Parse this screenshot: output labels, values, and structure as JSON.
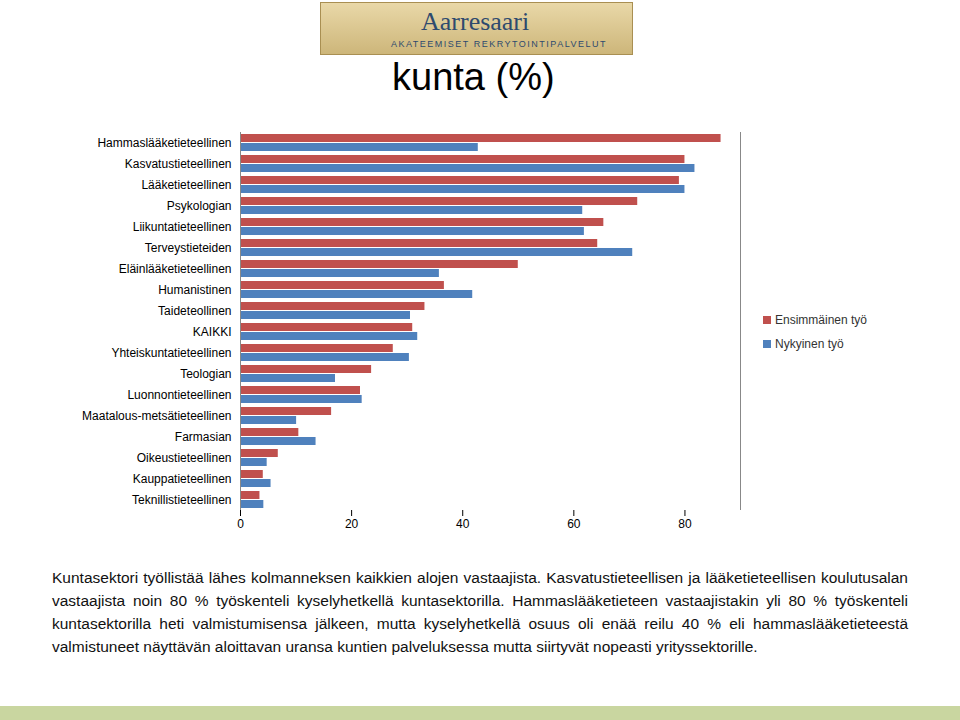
{
  "header": {
    "logo_title": "Aarresaari",
    "logo_subtitle": "AKATEEMISET REKRYTOINTIPALVELUT"
  },
  "chart_data": {
    "type": "bar",
    "orientation": "horizontal",
    "title": "kunta (%)",
    "categories": [
      "Hammaslääketieteellinen",
      "Kasvatustieteellinen",
      "Lääketieteellinen",
      "Psykologian",
      "Liikuntatieteellinen",
      "Terveystieteiden",
      "Eläinlääketieteellinen",
      "Humanistinen",
      "Taideteollinen",
      "KAIKKI",
      "Yhteiskuntatieteellinen",
      "Teologian",
      "Luonnontieteellinen",
      "Maatalous-metsätieteellinen",
      "Farmasian",
      "Oikeustieteellinen",
      "Kauppatieteellinen",
      "Teknillistieteellinen"
    ],
    "series": [
      {
        "name": "Ensimmäinen työ",
        "color": "#c0504d",
        "values": [
          86.5,
          80,
          79,
          71.5,
          65.4,
          64.3,
          50,
          36.7,
          33.2,
          31,
          27.5,
          23.6,
          21.6,
          16.4,
          10.5,
          6.8,
          4.1,
          3.5
        ]
      },
      {
        "name": "Nykyinen työ",
        "color": "#4f81bd",
        "values": [
          42.8,
          81.8,
          80,
          61.6,
          61.9,
          70.6,
          35.8,
          41.8,
          30.6,
          31.9,
          30.4,
          17.1,
          21.9,
          10.1,
          13.6,
          4.8,
          5.5,
          4.2
        ]
      }
    ],
    "xlim": [
      0,
      90
    ],
    "xticks": [
      0,
      20,
      40,
      60,
      80
    ],
    "grid": false,
    "legend": "right"
  },
  "caption": "Kuntasektori työllistää lähes kolmanneksen kaikkien alojen vastaajista. Kasvatustieteellisen ja lääketieteellisen koulutusalan vastaajista noin 80 % työskenteli kyselyhetkellä kuntasektorilla. Hammaslääketieteen vastaajistakin yli 80 % työskenteli kuntasektorilla heti valmistumisensa jälkeen, mutta kyselyhetkellä osuus oli enää reilu 40 % eli hammaslääketieteestä valmistuneet näyttävän aloittavan uransa kuntien palveluksessa mutta siirtyvät nopeasti yrityssektorille."
}
